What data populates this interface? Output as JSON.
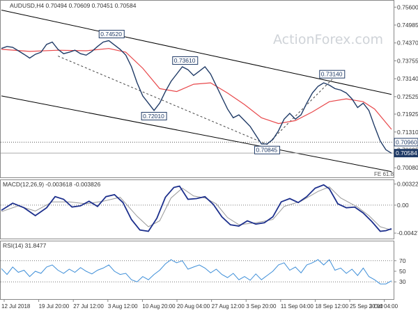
{
  "chart_data": {
    "type": "line",
    "symbol_info": "AUDUSD,H4  0.70494 0.70609 0.70451 0.70584",
    "watermark": "ActionForex.com",
    "colors": {
      "price": "#1f3a66",
      "ema": "#e8474a",
      "channel": "#000000",
      "trendline": "#444444",
      "label_fill": "#ffffff",
      "label_border": "#1f3a66",
      "macd_line": "#1c2f8c",
      "macd_signal": "#999999",
      "rsi": "#3d8ed8",
      "grid": "#d8d8d8"
    },
    "x_dates": [
      "12 Jul 2018",
      "19 Jul 20:00",
      "27 Jul 12:00",
      "3 Aug 12:00",
      "10 Aug 20:00",
      "20 Aug 04:00",
      "27 Aug 12:00",
      "3 Sep 20:00",
      "11 Sep 04:00",
      "18 Sep 12:00",
      "25 Sep 20:00",
      "3 Oct 04:00"
    ],
    "x_range": [
      0,
      138
    ],
    "main": {
      "ylim": [
        0.6987,
        0.7575
      ],
      "yticks": [
        "0.75600",
        "0.74985",
        "0.74370",
        "0.73755",
        "0.73140",
        "0.72525",
        "0.71925",
        "0.71310",
        "0.70695",
        "0.70080"
      ],
      "price_points": [
        [
          0,
          0.7418
        ],
        [
          2,
          0.7425
        ],
        [
          4,
          0.7422
        ],
        [
          6,
          0.741
        ],
        [
          8,
          0.7398
        ],
        [
          10,
          0.7385
        ],
        [
          12,
          0.7398
        ],
        [
          14,
          0.7405
        ],
        [
          16,
          0.7432
        ],
        [
          18,
          0.744
        ],
        [
          20,
          0.7415
        ],
        [
          22,
          0.74
        ],
        [
          24,
          0.7405
        ],
        [
          26,
          0.7412
        ],
        [
          28,
          0.74
        ],
        [
          30,
          0.7395
        ],
        [
          32,
          0.7408
        ],
        [
          34,
          0.7425
        ],
        [
          36,
          0.744
        ],
        [
          38,
          0.7445
        ],
        [
          40,
          0.743
        ],
        [
          42,
          0.7415
        ],
        [
          44,
          0.7395
        ],
        [
          46,
          0.7355
        ],
        [
          48,
          0.73
        ],
        [
          50,
          0.7255
        ],
        [
          52,
          0.723
        ],
        [
          54,
          0.7205
        ],
        [
          56,
          0.723
        ],
        [
          58,
          0.727
        ],
        [
          60,
          0.7305
        ],
        [
          62,
          0.733
        ],
        [
          64,
          0.7355
        ],
        [
          66,
          0.7345
        ],
        [
          68,
          0.7325
        ],
        [
          70,
          0.734
        ],
        [
          72,
          0.7355
        ],
        [
          74,
          0.733
        ],
        [
          76,
          0.729
        ],
        [
          78,
          0.725
        ],
        [
          80,
          0.721
        ],
        [
          82,
          0.718
        ],
        [
          84,
          0.719
        ],
        [
          86,
          0.717
        ],
        [
          88,
          0.715
        ],
        [
          90,
          0.712
        ],
        [
          92,
          0.709
        ],
        [
          94,
          0.709
        ],
        [
          96,
          0.7105
        ],
        [
          98,
          0.7135
        ],
        [
          100,
          0.7175
        ],
        [
          102,
          0.7195
        ],
        [
          104,
          0.7175
        ],
        [
          106,
          0.719
        ],
        [
          108,
          0.723
        ],
        [
          110,
          0.7265
        ],
        [
          112,
          0.7288
        ],
        [
          114,
          0.73
        ],
        [
          116,
          0.7292
        ],
        [
          118,
          0.728
        ],
        [
          120,
          0.7275
        ],
        [
          122,
          0.7265
        ],
        [
          124,
          0.7245
        ],
        [
          126,
          0.7215
        ],
        [
          128,
          0.723
        ],
        [
          130,
          0.7205
        ],
        [
          132,
          0.715
        ],
        [
          134,
          0.71
        ],
        [
          136,
          0.707
        ],
        [
          138,
          0.7058
        ]
      ],
      "ema_points": [
        [
          0,
          0.7415
        ],
        [
          10,
          0.7408
        ],
        [
          20,
          0.7412
        ],
        [
          30,
          0.741
        ],
        [
          38,
          0.7418
        ],
        [
          44,
          0.7405
        ],
        [
          50,
          0.735
        ],
        [
          56,
          0.728
        ],
        [
          62,
          0.727
        ],
        [
          68,
          0.7295
        ],
        [
          74,
          0.73
        ],
        [
          80,
          0.7265
        ],
        [
          86,
          0.7225
        ],
        [
          92,
          0.718
        ],
        [
          98,
          0.716
        ],
        [
          104,
          0.717
        ],
        [
          110,
          0.72
        ],
        [
          116,
          0.7235
        ],
        [
          122,
          0.7245
        ],
        [
          128,
          0.7235
        ],
        [
          132,
          0.721
        ],
        [
          138,
          0.714
        ]
      ],
      "upper_channel": [
        [
          0,
          0.755
        ],
        [
          138,
          0.726
        ]
      ],
      "lower_channel": [
        [
          0,
          0.7255
        ],
        [
          138,
          0.6995
        ]
      ],
      "trendline": [
        [
          20,
          0.7392
        ],
        [
          94,
          0.7088
        ],
        [
          117,
          0.7312
        ]
      ],
      "hline_dotted": 0.7096,
      "hline_solid": 0.70584,
      "labels": [
        {
          "text": "0.74520",
          "x": 39,
          "y": 0.7452
        },
        {
          "text": "0.73610",
          "x": 65,
          "y": 0.7361
        },
        {
          "text": "0.72010",
          "x": 54,
          "y": 0.7201
        },
        {
          "text": "0.70845",
          "x": 94,
          "y": 0.70845
        },
        {
          "text": "0.73140",
          "x": 117,
          "y": 0.7314
        }
      ],
      "right_tags": [
        {
          "text": "0.70960",
          "y": 0.7096
        },
        {
          "text": "0.70584",
          "y": 0.70584
        }
      ],
      "fib_label": "FE 61.8"
    },
    "macd": {
      "label": "MACD(12,26,9) -0.003618 -0.003826",
      "ylim": [
        -0.0049,
        0.0035
      ],
      "yticks": [
        {
          "text": "0.003227",
          "y": 0.003227
        },
        {
          "text": "0.00",
          "y": 0
        },
        {
          "text": "-0.004275",
          "y": -0.004275
        }
      ],
      "macd_points": [
        [
          0,
          -0.0008
        ],
        [
          4,
          0.0003
        ],
        [
          8,
          -0.0004
        ],
        [
          12,
          -0.0016
        ],
        [
          16,
          -0.0004
        ],
        [
          19,
          0.0013
        ],
        [
          22,
          0.0009
        ],
        [
          25,
          -0.0003
        ],
        [
          28,
          -0.0001
        ],
        [
          31,
          0.0006
        ],
        [
          34,
          -0.0002
        ],
        [
          37,
          0.0013
        ],
        [
          40,
          0.0016
        ],
        [
          43,
          0.0004
        ],
        [
          46,
          -0.0022
        ],
        [
          49,
          -0.0038
        ],
        [
          52,
          -0.004
        ],
        [
          55,
          -0.002
        ],
        [
          58,
          0.0012
        ],
        [
          61,
          0.0027
        ],
        [
          63,
          0.0029
        ],
        [
          66,
          0.0009
        ],
        [
          69,
          0.001
        ],
        [
          72,
          0.0013
        ],
        [
          75,
          0.0001
        ],
        [
          78,
          -0.0018
        ],
        [
          81,
          -0.003
        ],
        [
          84,
          -0.0032
        ],
        [
          87,
          -0.0024
        ],
        [
          90,
          -0.0029
        ],
        [
          93,
          -0.0027
        ],
        [
          96,
          -0.0018
        ],
        [
          99,
          0.0005
        ],
        [
          102,
          0.001
        ],
        [
          105,
          0.0004
        ],
        [
          108,
          0.0013
        ],
        [
          111,
          0.0026
        ],
        [
          114,
          0.0031
        ],
        [
          116,
          0.0025
        ],
        [
          119,
          0.0002
        ],
        [
          122,
          -0.0004
        ],
        [
          125,
          -0.0003
        ],
        [
          128,
          -0.0012
        ],
        [
          131,
          -0.0025
        ],
        [
          134,
          -0.004
        ],
        [
          136,
          -0.0039
        ],
        [
          138,
          -0.0036
        ]
      ],
      "signal_points": [
        [
          0,
          -0.001
        ],
        [
          6,
          -0.0001
        ],
        [
          12,
          -0.0009
        ],
        [
          18,
          0.0005
        ],
        [
          24,
          0.0005
        ],
        [
          30,
          0.0002
        ],
        [
          36,
          0.0006
        ],
        [
          42,
          0.0012
        ],
        [
          48,
          -0.0017
        ],
        [
          52,
          -0.0033
        ],
        [
          56,
          -0.0024
        ],
        [
          60,
          0.0011
        ],
        [
          64,
          0.0026
        ],
        [
          68,
          0.0014
        ],
        [
          72,
          0.0011
        ],
        [
          76,
          0.0002
        ],
        [
          80,
          -0.0019
        ],
        [
          84,
          -0.003
        ],
        [
          90,
          -0.0027
        ],
        [
          96,
          -0.0022
        ],
        [
          100,
          -0.0002
        ],
        [
          106,
          0.0006
        ],
        [
          112,
          0.0021
        ],
        [
          116,
          0.0028
        ],
        [
          120,
          0.0011
        ],
        [
          126,
          -0.0003
        ],
        [
          130,
          -0.0016
        ],
        [
          134,
          -0.0033
        ],
        [
          138,
          -0.0038
        ]
      ]
    },
    "rsi": {
      "label": "RSI(14) 31.8477",
      "ylim": [
        0,
        100
      ],
      "levels": [
        70,
        30
      ],
      "yticks": [
        "70",
        "50",
        "30"
      ],
      "rsi_points": [
        [
          0,
          55
        ],
        [
          2,
          44
        ],
        [
          4,
          58
        ],
        [
          6,
          48
        ],
        [
          8,
          52
        ],
        [
          10,
          40
        ],
        [
          12,
          50
        ],
        [
          14,
          46
        ],
        [
          16,
          58
        ],
        [
          18,
          62
        ],
        [
          20,
          52
        ],
        [
          22,
          46
        ],
        [
          24,
          54
        ],
        [
          26,
          48
        ],
        [
          28,
          57
        ],
        [
          30,
          50
        ],
        [
          32,
          45
        ],
        [
          34,
          52
        ],
        [
          36,
          56
        ],
        [
          38,
          62
        ],
        [
          40,
          50
        ],
        [
          42,
          44
        ],
        [
          44,
          46
        ],
        [
          46,
          34
        ],
        [
          48,
          30
        ],
        [
          50,
          40
        ],
        [
          52,
          34
        ],
        [
          54,
          44
        ],
        [
          56,
          52
        ],
        [
          58,
          64
        ],
        [
          60,
          72
        ],
        [
          62,
          66
        ],
        [
          64,
          70
        ],
        [
          66,
          54
        ],
        [
          68,
          58
        ],
        [
          70,
          62
        ],
        [
          72,
          56
        ],
        [
          74,
          47
        ],
        [
          76,
          54
        ],
        [
          78,
          44
        ],
        [
          80,
          38
        ],
        [
          82,
          46
        ],
        [
          84,
          34
        ],
        [
          86,
          40
        ],
        [
          88,
          33
        ],
        [
          90,
          45
        ],
        [
          92,
          34
        ],
        [
          94,
          42
        ],
        [
          96,
          50
        ],
        [
          98,
          62
        ],
        [
          100,
          66
        ],
        [
          102,
          52
        ],
        [
          104,
          58
        ],
        [
          106,
          47
        ],
        [
          108,
          62
        ],
        [
          110,
          66
        ],
        [
          112,
          72
        ],
        [
          114,
          62
        ],
        [
          116,
          72
        ],
        [
          118,
          52
        ],
        [
          120,
          56
        ],
        [
          122,
          46
        ],
        [
          124,
          54
        ],
        [
          126,
          42
        ],
        [
          128,
          56
        ],
        [
          130,
          40
        ],
        [
          132,
          34
        ],
        [
          134,
          26
        ],
        [
          136,
          26
        ],
        [
          138,
          32
        ]
      ]
    }
  }
}
